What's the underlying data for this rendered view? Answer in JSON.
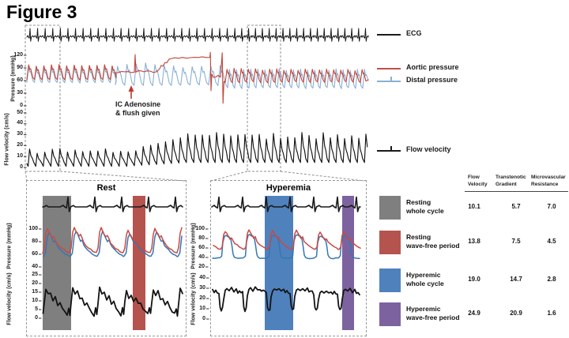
{
  "figure_label": "Figure 3",
  "colors": {
    "ecg": "#1a1a1a",
    "aortic": "#c24438",
    "distal": "#8ab0d2",
    "aortic_zoom": "#cb4a42",
    "distal_zoom": "#3577b5",
    "flow": "#141414",
    "band_gray": "#7f7f7f",
    "band_red": "#b5534e",
    "band_blue": "#4f81bd",
    "band_purple": "#7d62a0",
    "annotation_arrow": "#c0392b"
  },
  "top": {
    "pressure_ylabel": "Pressure (mmHg)",
    "pressure_ticks": [
      120,
      90,
      60,
      30,
      0
    ],
    "flow_ylabel": "Flow velocity (cm/s)",
    "flow_ticks": [
      50,
      40,
      30,
      20,
      10,
      0
    ],
    "annotation": {
      "line1": "IC Adenosine",
      "line2": "& flush given"
    },
    "legend": [
      {
        "label": "ECG",
        "color": "#1a1a1a",
        "tick_mark": false
      },
      {
        "label": "Aortic pressure",
        "color": "#c0504d",
        "tick_mark": false
      },
      {
        "label": "Distal pressure",
        "color": "#8ab0d2",
        "tick_mark": true
      },
      {
        "label": "Flow velocity",
        "color": "#1a1a1a",
        "tick_mark": true
      }
    ]
  },
  "panels": [
    {
      "title": "Rest",
      "pressure_ylabel": "Pressure (mmHg)",
      "pressure_ticks": [
        100,
        80,
        60,
        40
      ],
      "flow_ylabel": "Flow velocity (cm/s)",
      "flow_ticks": [
        25,
        20,
        15,
        10,
        5,
        0
      ],
      "bands": [
        {
          "name": "whole-cycle",
          "color": "#7f7f7f"
        },
        {
          "name": "wave-free-period",
          "color": "#b5534e"
        }
      ]
    },
    {
      "title": "Hyperemia",
      "pressure_ylabel": "Pressure (mmHg)",
      "pressure_ticks": [
        100,
        80,
        60,
        40,
        20
      ],
      "flow_ylabel": "Flow velocity (cm/s)",
      "flow_ticks": [
        40,
        30,
        20,
        10,
        0
      ],
      "bands": [
        {
          "name": "whole-cycle",
          "color": "#4f81bd"
        },
        {
          "name": "wave-free-period",
          "color": "#7d62a0"
        }
      ]
    }
  ],
  "table": {
    "col_headers": [
      [
        "Flow",
        "Velocity"
      ],
      [
        "Transtenotic",
        "Gradient"
      ],
      [
        "Microvascular",
        "Resistance"
      ]
    ],
    "rows": [
      {
        "swatch": "#7f7f7f",
        "label": [
          "Resting",
          "whole cycle"
        ],
        "values": [
          "10.1",
          "5.7",
          "7.0"
        ]
      },
      {
        "swatch": "#b5534e",
        "label": [
          "Resting",
          "wave-free period"
        ],
        "values": [
          "13.8",
          "7.5",
          "4.5"
        ]
      },
      {
        "swatch": "#4f81bd",
        "label": [
          "Hyperemic",
          "whole cycle"
        ],
        "values": [
          "19.0",
          "14.7",
          "2.8"
        ]
      },
      {
        "swatch": "#7d62a0",
        "label": [
          "Hyperemic",
          "wave-free period"
        ],
        "values": [
          "24.9",
          "20.9",
          "1.6"
        ]
      }
    ]
  },
  "chart_data": [
    {
      "type": "line",
      "title": "Continuous pressure recording",
      "ylabel": "Pressure (mmHg)",
      "ylim": [
        0,
        130
      ],
      "yticks": [
        0,
        30,
        60,
        90,
        120
      ],
      "annotation": "IC Adenosine & flush given",
      "series": [
        {
          "name": "Aortic pressure",
          "description": "pulsatile ~62-96 mmHg at rest; damped ~80 then wedge plateau ~112-117 during IC adenosine flush with catheter spike artifacts; pulsatile ~56-87 during hyperemia"
        },
        {
          "name": "Distal pressure",
          "description": "pulsatile ~55-90 at rest; ~42-86 with lower diastolic values during hyperemia"
        }
      ]
    },
    {
      "type": "line",
      "title": "Continuous flow velocity recording",
      "ylabel": "Flow velocity (cm/s)",
      "ylim": [
        0,
        55
      ],
      "yticks": [
        0,
        10,
        20,
        30,
        40,
        50
      ],
      "series": [
        {
          "name": "Flow velocity",
          "description": "resting pulses ~2-18 cm/s rising after adenosine to sustained hyperemic pulses ~8-33 cm/s"
        }
      ]
    },
    {
      "type": "line",
      "title": "Rest (zoomed beats)",
      "yticks_pressure": [
        100,
        80,
        60,
        40
      ],
      "yticks_flow": [
        25,
        20,
        15,
        10,
        5,
        0
      ],
      "highlight_bands": [
        "Resting whole cycle (gray)",
        "Resting wave-free period (red)"
      ]
    },
    {
      "type": "line",
      "title": "Hyperemia (zoomed beats)",
      "yticks_pressure": [
        100,
        80,
        60,
        40,
        20
      ],
      "yticks_flow": [
        40,
        30,
        20,
        10,
        0
      ],
      "highlight_bands": [
        "Hyperemic whole cycle (blue)",
        "Hyperemic wave-free period (purple)"
      ]
    },
    {
      "type": "table",
      "columns": [
        "Flow Velocity",
        "Transtenotic Gradient",
        "Microvascular Resistance"
      ],
      "rows": [
        [
          "Resting whole cycle",
          10.1,
          5.7,
          7.0
        ],
        [
          "Resting wave-free period",
          13.8,
          7.5,
          4.5
        ],
        [
          "Hyperemic whole cycle",
          19.0,
          14.7,
          2.8
        ],
        [
          "Hyperemic wave-free period",
          24.9,
          20.9,
          1.6
        ]
      ]
    }
  ]
}
